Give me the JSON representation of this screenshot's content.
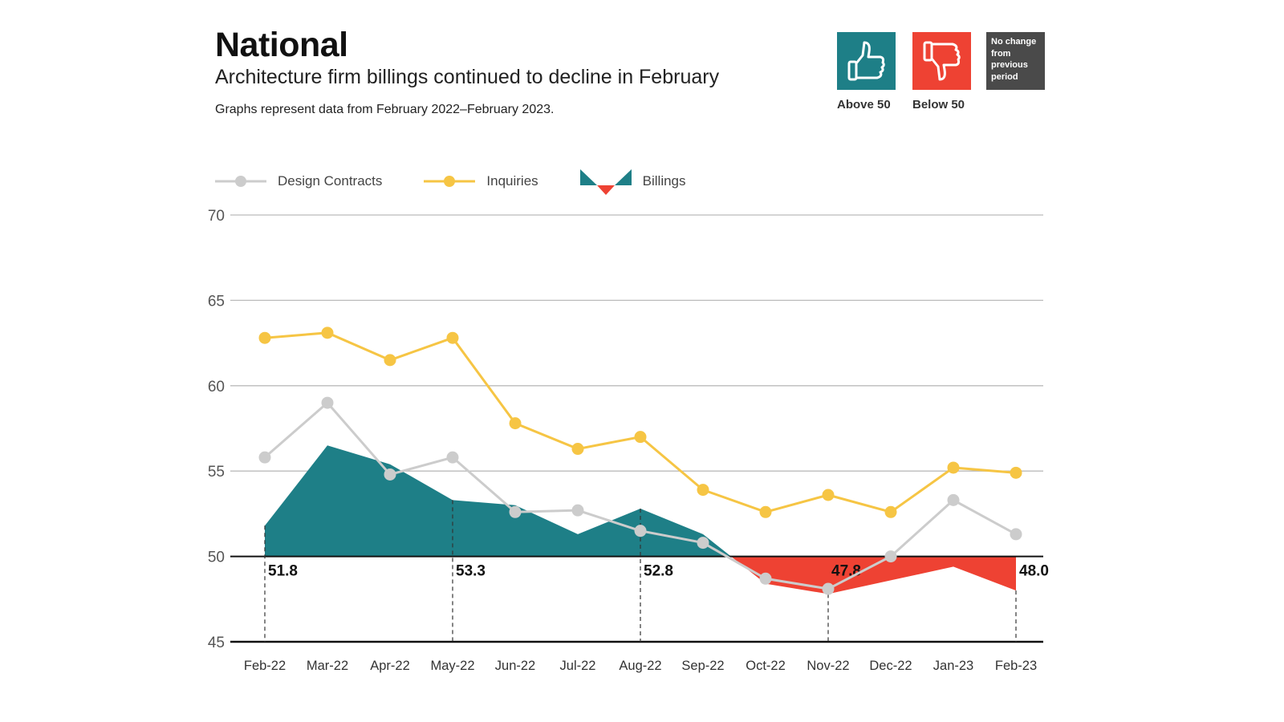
{
  "header": {
    "title": "National",
    "subtitle": "Architecture firm billings continued to decline in February",
    "note": "Graphs represent data from February 2022–February 2023."
  },
  "key": {
    "above": {
      "label": "Above 50",
      "icon": "thumbs-up-icon",
      "color": "#1e7f87"
    },
    "below": {
      "label": "Below 50",
      "icon": "thumbs-down-icon",
      "color": "#ee4233"
    },
    "no_change": {
      "label": "No change from previous period",
      "color": "#4a4a4a"
    }
  },
  "chart_data": {
    "type": "line",
    "title": "",
    "xlabel": "",
    "ylabel": "",
    "ylim": [
      45,
      70
    ],
    "yticks": [
      45,
      50,
      55,
      60,
      65,
      70
    ],
    "baseline": 50,
    "grid": true,
    "legend": "top-left",
    "categories": [
      "Feb-22",
      "Mar-22",
      "Apr-22",
      "May-22",
      "Jun-22",
      "Jul-22",
      "Aug-22",
      "Sep-22",
      "Oct-22",
      "Nov-22",
      "Dec-22",
      "Jan-23",
      "Feb-23"
    ],
    "series": [
      {
        "name": "Design Contracts",
        "style": "line-marker",
        "color": "#cccccc",
        "values": [
          55.8,
          59.0,
          54.8,
          55.8,
          52.6,
          52.7,
          51.5,
          50.8,
          48.7,
          48.1,
          50.0,
          53.3,
          51.3
        ]
      },
      {
        "name": "Inquiries",
        "style": "line-marker",
        "color": "#f6c544",
        "values": [
          62.8,
          63.1,
          61.5,
          62.8,
          57.8,
          56.3,
          57.0,
          53.9,
          52.6,
          53.6,
          52.6,
          55.2,
          54.9
        ]
      },
      {
        "name": "Billings",
        "style": "area-diverging",
        "color_above": "#1e7f87",
        "color_below": "#ee4233",
        "values": [
          51.8,
          56.5,
          55.4,
          53.3,
          53.0,
          51.3,
          52.8,
          51.3,
          48.4,
          47.8,
          48.6,
          49.4,
          48.0
        ]
      }
    ],
    "annotations": [
      {
        "category": "Feb-22",
        "label": "51.8"
      },
      {
        "category": "May-22",
        "label": "53.3"
      },
      {
        "category": "Aug-22",
        "label": "52.8"
      },
      {
        "category": "Nov-22",
        "label": "47.8"
      },
      {
        "category": "Feb-23",
        "label": "48.0"
      }
    ]
  }
}
